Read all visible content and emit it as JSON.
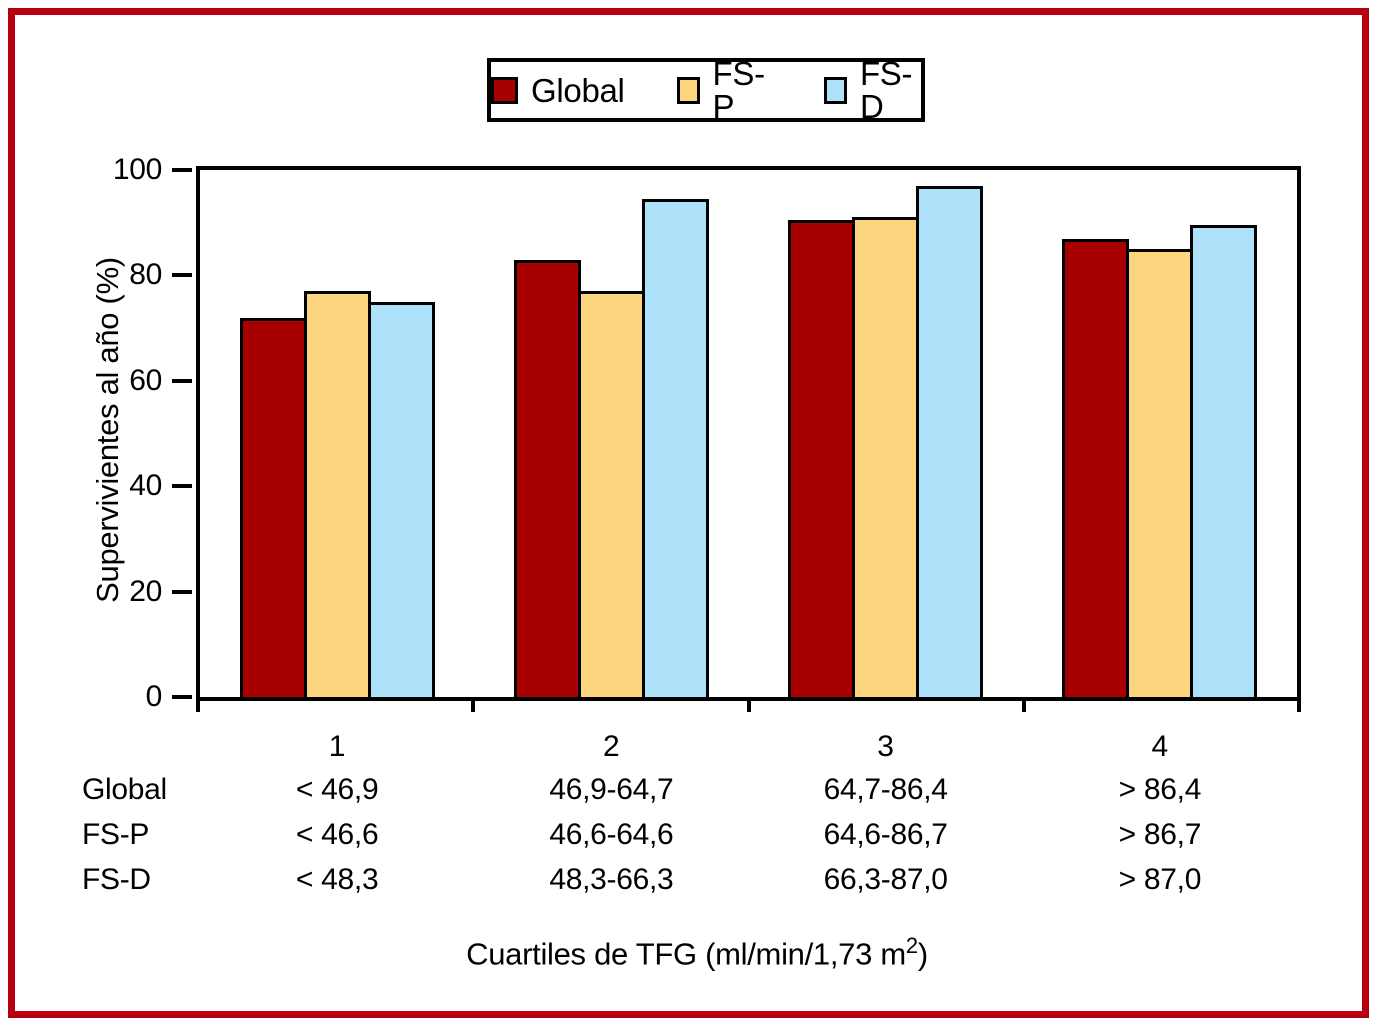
{
  "frame": {
    "border_color": "#b6000f"
  },
  "legend": {
    "items": [
      {
        "label": "Global",
        "color": "#a80000"
      },
      {
        "label": "FS-P",
        "color": "#fcd67e"
      },
      {
        "label": "FS-D",
        "color": "#aee2fb"
      }
    ]
  },
  "chart_data": {
    "type": "bar",
    "title": "",
    "ylabel": "Supervivientes al año (%)",
    "xlabel": "Cuartiles de TFG (ml/min/1,73 m2)",
    "xlabel_prefix": "Cuartiles de TFG (ml/min/1,73 m",
    "xlabel_sup": "2",
    "xlabel_suffix": ")",
    "ylim": [
      0,
      100
    ],
    "yticks": [
      0,
      20,
      40,
      60,
      80,
      100
    ],
    "categories": [
      "1",
      "2",
      "3",
      "4"
    ],
    "series": [
      {
        "name": "Global",
        "color": "#a80000",
        "values": [
          72,
          83,
          90.5,
          87
        ]
      },
      {
        "name": "FS-P",
        "color": "#fcd67e",
        "values": [
          77,
          77,
          91,
          85
        ]
      },
      {
        "name": "FS-D",
        "color": "#aee2fb",
        "values": [
          75,
          94.5,
          97,
          89.5
        ]
      }
    ],
    "grid": false,
    "legend_position": "top-center"
  },
  "table": {
    "rows": [
      {
        "label": "Global",
        "values": [
          "< 46,9",
          "46,9-64,7",
          "64,7-86,4",
          "> 86,4"
        ]
      },
      {
        "label": "FS-P",
        "values": [
          "< 46,6",
          "46,6-64,6",
          "64,6-86,7",
          "> 86,7"
        ]
      },
      {
        "label": "FS-D",
        "values": [
          "< 48,3",
          "48,3-66,3",
          "66,3-87,0",
          "> 87,0"
        ]
      }
    ]
  }
}
